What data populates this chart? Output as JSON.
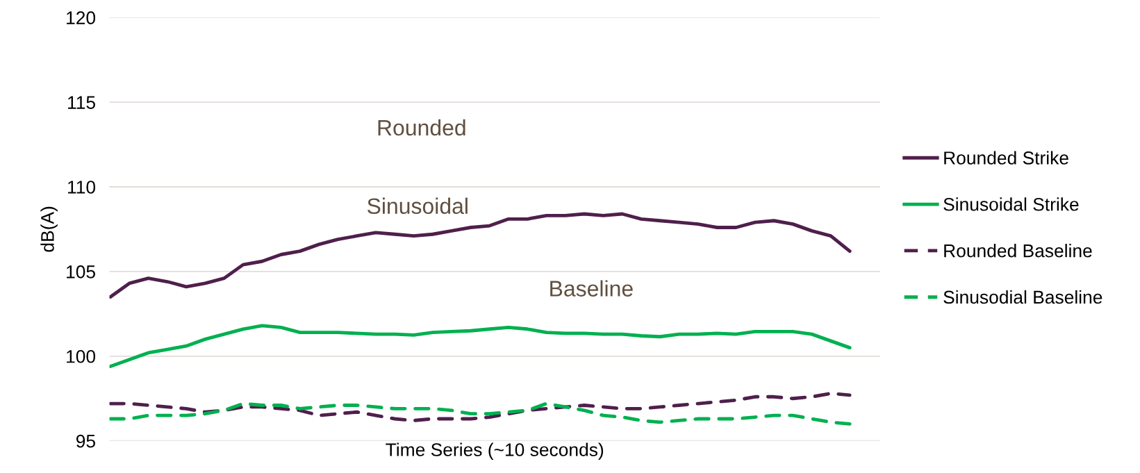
{
  "chart_data": {
    "type": "line",
    "xlabel": "Time Series (~10 seconds)",
    "ylabel": "dB(A)",
    "categories": [
      null,
      null,
      null,
      null,
      null,
      null,
      null,
      null,
      null,
      null,
      null,
      null,
      null,
      null,
      null,
      null,
      null,
      null,
      null,
      null,
      null,
      null,
      null,
      null,
      null,
      null,
      null,
      null,
      null,
      null,
      null,
      null,
      null,
      null,
      null,
      null,
      null,
      null,
      null,
      null
    ],
    "ylim": [
      95,
      120
    ],
    "yticks": [
      95,
      100,
      105,
      110,
      115,
      120
    ],
    "grid": "y",
    "legend": "right",
    "tick_labels": "y",
    "series": [
      {
        "name": "Rounded Strike",
        "color": "#4f1f4c",
        "line_style": "solid",
        "values": [
          103.5,
          104.3,
          104.6,
          104.4,
          104.1,
          104.3,
          104.6,
          105.4,
          105.6,
          106.0,
          106.2,
          106.6,
          106.9,
          107.1,
          107.3,
          107.2,
          107.1,
          107.2,
          107.4,
          107.6,
          107.7,
          108.1,
          108.1,
          108.3,
          108.3,
          108.4,
          108.3,
          108.4,
          108.1,
          108.0,
          107.9,
          107.8,
          107.6,
          107.6,
          107.9,
          108.0,
          107.8,
          107.4,
          107.1,
          106.2
        ]
      },
      {
        "name": "Sinusoidal Strike",
        "color": "#00b050",
        "line_style": "solid",
        "values": [
          99.4,
          99.8,
          100.2,
          100.4,
          100.6,
          101.0,
          101.3,
          101.6,
          101.8,
          101.7,
          101.4,
          101.4,
          101.4,
          101.35,
          101.3,
          101.3,
          101.25,
          101.4,
          101.45,
          101.5,
          101.6,
          101.7,
          101.6,
          101.4,
          101.35,
          101.35,
          101.3,
          101.3,
          101.2,
          101.15,
          101.3,
          101.3,
          101.35,
          101.3,
          101.45,
          101.45,
          101.45,
          101.3,
          100.9,
          100.5
        ]
      },
      {
        "name": "Rounded Baseline",
        "color": "#4f1f4c",
        "line_style": "dashed",
        "values": [
          97.2,
          97.2,
          97.1,
          97.0,
          96.9,
          96.7,
          96.8,
          97.0,
          97.0,
          96.9,
          96.8,
          96.5,
          96.6,
          96.7,
          96.5,
          96.3,
          96.2,
          96.3,
          96.3,
          96.3,
          96.4,
          96.6,
          96.8,
          96.9,
          97.0,
          97.1,
          97.0,
          96.9,
          96.9,
          97.0,
          97.1,
          97.2,
          97.3,
          97.4,
          97.6,
          97.6,
          97.5,
          97.6,
          97.8,
          97.7
        ]
      },
      {
        "name": "Sinusodial Baseline",
        "color": "#00b050",
        "line_style": "dashed",
        "values": [
          96.3,
          96.3,
          96.5,
          96.5,
          96.5,
          96.6,
          96.8,
          97.2,
          97.1,
          97.1,
          96.9,
          97.0,
          97.1,
          97.1,
          97.0,
          96.9,
          96.9,
          96.9,
          96.8,
          96.6,
          96.6,
          96.7,
          96.8,
          97.2,
          97.0,
          96.8,
          96.5,
          96.4,
          96.2,
          96.1,
          96.2,
          96.3,
          96.3,
          96.3,
          96.4,
          96.5,
          96.5,
          96.3,
          96.1,
          96.0
        ]
      }
    ],
    "annotations": [
      "Rounded",
      "Sinusoidal",
      "Baseline"
    ]
  }
}
